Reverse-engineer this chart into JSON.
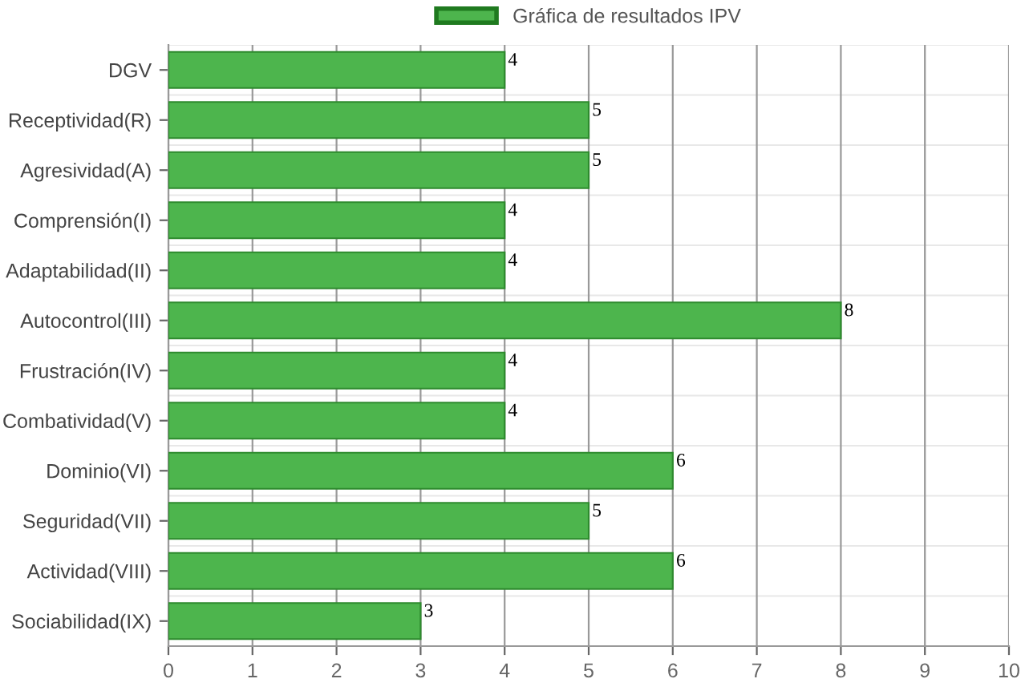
{
  "chart_data": {
    "type": "bar",
    "orientation": "horizontal",
    "categories": [
      "DGV",
      "Receptividad(R)",
      "Agresividad(A)",
      "Comprensión(I)",
      "Adaptabilidad(II)",
      "Autocontrol(III)",
      "Frustración(IV)",
      "Combatividad(V)",
      "Dominio(VI)",
      "Seguridad(VII)",
      "Actividad(VIII)",
      "Sociabilidad(IX)"
    ],
    "series": [
      {
        "name": "Gráfica de resultados IPV",
        "color": "#4db54d",
        "values": [
          4,
          5,
          5,
          4,
          4,
          8,
          4,
          4,
          6,
          5,
          6,
          3
        ]
      }
    ],
    "xlim": [
      0,
      10
    ],
    "xticks": [
      0,
      1,
      2,
      3,
      4,
      5,
      6,
      7,
      8,
      9,
      10
    ],
    "grid": true,
    "legend": "top",
    "data_labels": true
  }
}
